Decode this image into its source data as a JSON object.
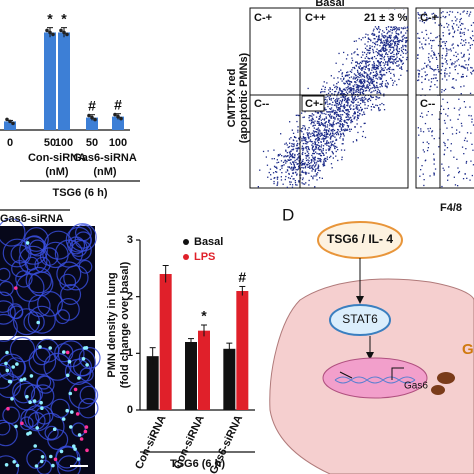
{
  "chart_data": [
    {
      "type": "bar",
      "categories": [
        "0",
        "50",
        "100",
        "50",
        "100"
      ],
      "values": [
        0.9,
        10.2,
        10.2,
        1.3,
        1.4
      ],
      "errors": [
        0.1,
        0.5,
        0.5,
        0.3,
        0.3
      ],
      "color": "#3d7fd6",
      "ylim": [
        0,
        11.5
      ],
      "annotations": [
        null,
        "*",
        "*",
        "#",
        "#"
      ],
      "group_labels": [
        "Con-siRNA",
        "Gas6-siRNA"
      ],
      "unit_labels": [
        "(nM)",
        "(nM)"
      ],
      "xlabel": "TSG6 (6 h)"
    },
    {
      "type": "bar",
      "ylabel": [
        "PMN density in lung",
        "(fold change over basal)"
      ],
      "categories": [
        "Con-siRNA",
        "Con-siRNA",
        "Gas6-siRNA"
      ],
      "series": [
        {
          "name": "Basal",
          "color": "#111111",
          "values": [
            0.95,
            1.2,
            1.08
          ],
          "errors": [
            0.15,
            0.06,
            0.1
          ]
        },
        {
          "name": "LPS",
          "color": "#e0202a",
          "values": [
            2.4,
            1.4,
            2.1
          ],
          "errors": [
            0.15,
            0.1,
            0.08
          ],
          "annotations": [
            null,
            "*",
            "#"
          ]
        }
      ],
      "ylim": [
        0,
        3
      ],
      "yticks": [
        0,
        1,
        2,
        3
      ],
      "xlabel": "TSG6 (6 h)"
    }
  ],
  "flow": {
    "title": "Basal",
    "ylabel": [
      "CMTPX red",
      "(apoptotic PMNs)"
    ],
    "quadrants": [
      "C-+",
      "C++",
      "C--",
      "C+-"
    ],
    "percent": "21 ± 3 %",
    "second_quadrants": [
      "C-+",
      "C--"
    ],
    "xlabel": "F4/8"
  },
  "image": {
    "label": "Gas6-siRNA"
  },
  "diagram": {
    "panel": "D",
    "ligand": "TSG6 / IL- 4",
    "factor": "STAT6",
    "gene": "Gas6",
    "product": "G"
  }
}
